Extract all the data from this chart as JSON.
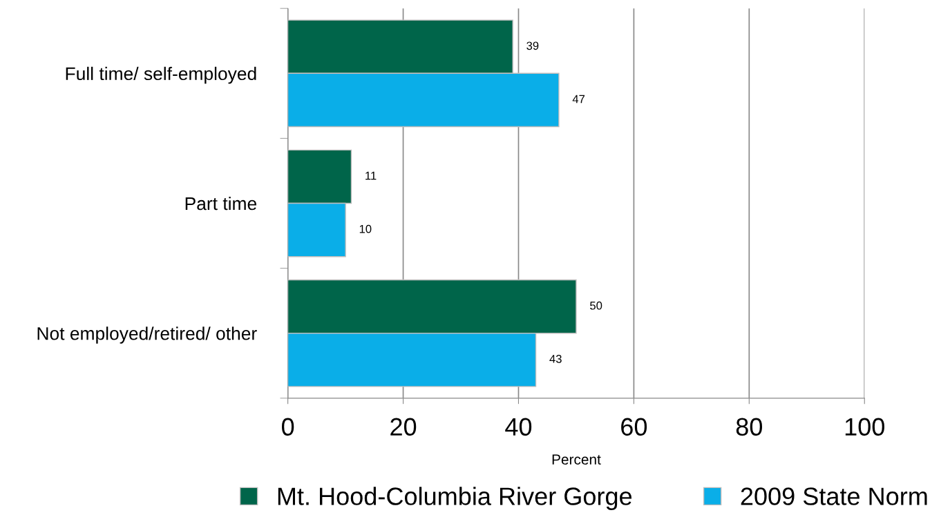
{
  "chart_data": {
    "type": "bar",
    "orientation": "horizontal",
    "categories": [
      "Full time/ self-employed",
      "Part time",
      "Not employed/retired/ other"
    ],
    "series": [
      {
        "name": "Mt. Hood-Columbia River Gorge",
        "color": "#00654a",
        "values": [
          39,
          11,
          50
        ]
      },
      {
        "name": "2009 State Norm",
        "color": "#0aaee8",
        "values": [
          47,
          10,
          43
        ]
      }
    ],
    "xlabel": "Percent",
    "xlim": [
      0,
      100
    ],
    "xticks": [
      0,
      20,
      40,
      60,
      80,
      100
    ],
    "grid": "x",
    "legend": "bottom",
    "data_labels": true
  }
}
